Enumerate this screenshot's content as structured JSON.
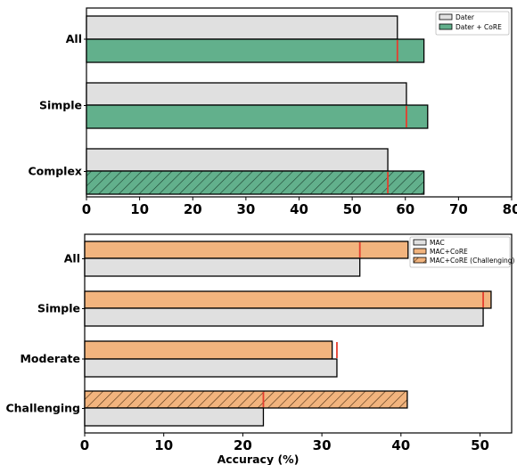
{
  "chart_data": [
    {
      "type": "bar",
      "orientation": "horizontal",
      "categories": [
        "All",
        "Simple",
        "Complex"
      ],
      "series": [
        {
          "name": "Dater",
          "values": [
            58.5,
            60.2,
            56.7
          ],
          "color": "#e0e0e0"
        },
        {
          "name": "Dater + CoRE",
          "values": [
            63.5,
            64.2,
            63.5
          ],
          "color": "#62b08c"
        }
      ],
      "hatched": {
        "series": "Dater + CoRE",
        "categories": [
          "Complex"
        ]
      },
      "baseline_markers": {
        "source_series": "Dater",
        "color": "#e53e2e"
      },
      "xlim": [
        0,
        80
      ],
      "xticks": [
        0,
        10,
        20,
        30,
        40,
        50,
        60,
        70,
        80
      ],
      "xlabel": "",
      "ylabel": "",
      "title": "",
      "legend_placement": "top-right",
      "grid": false
    },
    {
      "type": "bar",
      "orientation": "horizontal",
      "categories": [
        "All",
        "Simple",
        "Moderate",
        "Challenging"
      ],
      "series": [
        {
          "name": "MAC",
          "values": [
            34.8,
            50.4,
            31.9,
            22.6
          ],
          "color": "#e0e0e0"
        },
        {
          "name": "MAC+CoRE",
          "values": [
            40.9,
            51.4,
            31.3,
            null
          ],
          "color": "#f2b47e"
        },
        {
          "name": "MAC+CoRE (Challenging)",
          "values": [
            null,
            null,
            null,
            40.8
          ],
          "color": "#f2b47e",
          "hatched": true
        }
      ],
      "baseline_markers": {
        "source_series": "MAC",
        "color": "#e53e2e"
      },
      "xlim": [
        0,
        54
      ],
      "xticks": [
        0,
        10,
        20,
        30,
        40,
        50
      ],
      "xlabel": "Accuracy (%)",
      "ylabel": "",
      "title": "",
      "legend_placement": "top-right",
      "grid": false
    }
  ]
}
